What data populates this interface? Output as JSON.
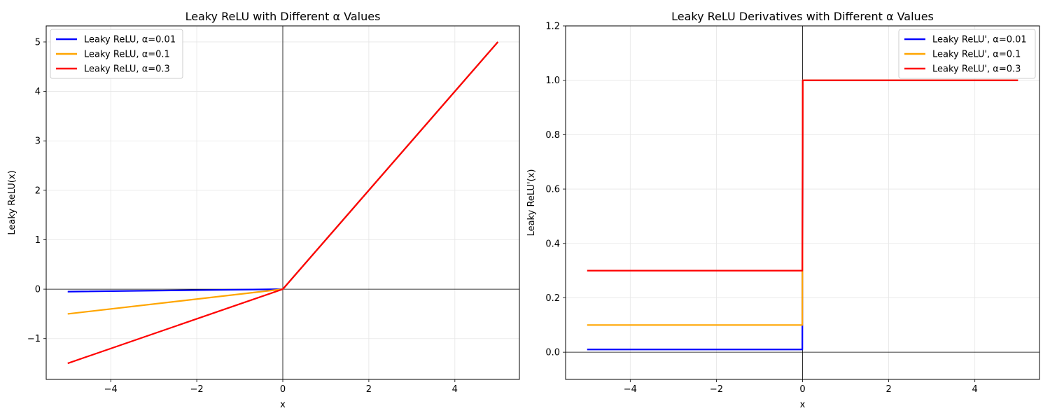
{
  "chart_data": [
    {
      "type": "line",
      "title": "Leaky ReLU with Different α Values",
      "xlabel": "x",
      "ylabel": "Leaky ReLU(x)",
      "xlim": [
        -5.5,
        5.5
      ],
      "ylim": [
        -1.825,
        5.325
      ],
      "xticks": [
        -4,
        -2,
        0,
        2,
        4
      ],
      "xtick_labels": [
        "−4",
        "−2",
        "0",
        "2",
        "4"
      ],
      "yticks": [
        -1,
        0,
        1,
        2,
        3,
        4,
        5
      ],
      "ytick_labels": [
        "−1",
        "0",
        "1",
        "2",
        "3",
        "4",
        "5"
      ],
      "grid": true,
      "legend_position": "top-left",
      "series": [
        {
          "name": "Leaky ReLU, α=0.01",
          "color": "#0000ff",
          "x": [
            -5,
            0,
            5
          ],
          "y": [
            -0.05,
            0,
            5
          ]
        },
        {
          "name": "Leaky ReLU, α=0.1",
          "color": "#ffa500",
          "x": [
            -5,
            0,
            5
          ],
          "y": [
            -0.5,
            0,
            5
          ]
        },
        {
          "name": "Leaky ReLU, α=0.3",
          "color": "#ff0000",
          "x": [
            -5,
            0,
            5
          ],
          "y": [
            -1.5,
            0,
            5
          ]
        }
      ]
    },
    {
      "type": "line",
      "title": "Leaky ReLU Derivatives with Different α Values",
      "xlabel": "x",
      "ylabel": "Leaky ReLU'(x)",
      "xlim": [
        -5.5,
        5.5
      ],
      "ylim": [
        -0.1,
        1.2
      ],
      "xticks": [
        -4,
        -2,
        0,
        2,
        4
      ],
      "xtick_labels": [
        "−4",
        "−2",
        "0",
        "2",
        "4"
      ],
      "yticks": [
        0.0,
        0.2,
        0.4,
        0.6,
        0.8,
        1.0,
        1.2
      ],
      "ytick_labels": [
        "0.0",
        "0.2",
        "0.4",
        "0.6",
        "0.8",
        "1.0",
        "1.2"
      ],
      "grid": true,
      "legend_position": "top-right",
      "series": [
        {
          "name": "Leaky ReLU', α=0.01",
          "color": "#0000ff",
          "x": [
            -5,
            -0.005,
            0.005,
            5
          ],
          "y": [
            0.01,
            0.01,
            1,
            1
          ]
        },
        {
          "name": "Leaky ReLU', α=0.1",
          "color": "#ffa500",
          "x": [
            -5,
            -0.005,
            0.005,
            5
          ],
          "y": [
            0.1,
            0.1,
            1,
            1
          ]
        },
        {
          "name": "Leaky ReLU', α=0.3",
          "color": "#ff0000",
          "x": [
            -5,
            -0.005,
            0.005,
            5
          ],
          "y": [
            0.3,
            0.3,
            1,
            1
          ]
        }
      ]
    }
  ]
}
